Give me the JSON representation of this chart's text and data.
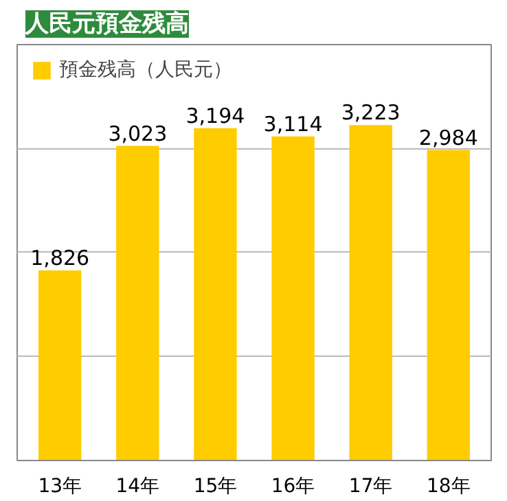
{
  "chart_data": {
    "type": "bar",
    "title": "人民元預金残高",
    "categories": [
      "13年",
      "14年",
      "15年",
      "16年",
      "17年",
      "18年"
    ],
    "series": [
      {
        "name": "預金残高（人民元）",
        "color": "#ffcc00",
        "values": [
          1826,
          3023,
          3194,
          3114,
          3223,
          2984
        ],
        "value_labels": [
          "1,826",
          "3,023",
          "3,194",
          "3,114",
          "3,223",
          "2,984"
        ]
      }
    ],
    "tick_labels": "x",
    "grid": "y",
    "legend": "top left"
  }
}
